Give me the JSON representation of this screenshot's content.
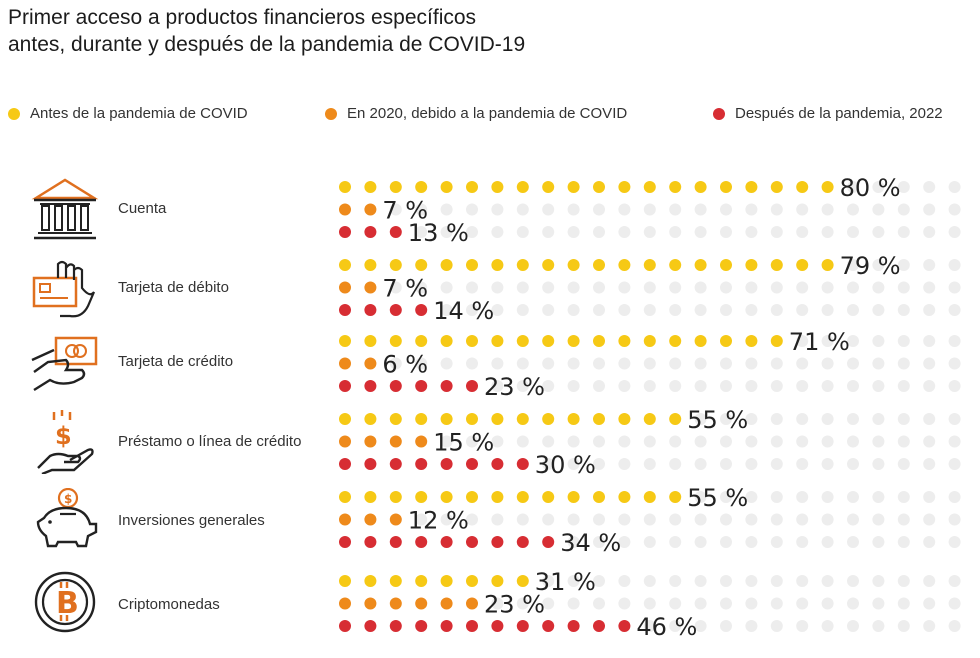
{
  "chart_data": {
    "type": "dot-matrix",
    "title": "Primer acceso a productos financieros específicos",
    "subtitle": "antes, durante y después de la pandemia de COVID-19",
    "legend": [
      {
        "label": "Antes de la pandemia de COVID",
        "color": "#F6C915"
      },
      {
        "label": "En 2020, debido a la pandemia de COVID",
        "color": "#EE8A1B"
      },
      {
        "label": "Después de la pandemia, 2022",
        "color": "#D72D33"
      }
    ],
    "empty_color": "#EDEDED",
    "categories": [
      {
        "name": "Cuenta",
        "icon": "bank-icon",
        "values": [
          80,
          7,
          13
        ],
        "labels": [
          "80 %",
          "7 %",
          "13 %"
        ]
      },
      {
        "name": "Tarjeta de débito",
        "icon": "debit-card-icon",
        "values": [
          79,
          7,
          14
        ],
        "labels": [
          "79 %",
          "7 %",
          "14 %"
        ]
      },
      {
        "name": "Tarjeta de crédito",
        "icon": "credit-card-icon",
        "values": [
          71,
          6,
          23
        ],
        "labels": [
          "71 %",
          "6 %",
          "23 %"
        ]
      },
      {
        "name": "Préstamo o línea de crédito",
        "icon": "loan-icon",
        "values": [
          55,
          15,
          30
        ],
        "labels": [
          "55 %",
          "15 %",
          "30 %"
        ]
      },
      {
        "name": "Inversiones generales",
        "icon": "piggy-bank-icon",
        "values": [
          55,
          12,
          34
        ],
        "labels": [
          "55 %",
          "12 %",
          "34 %"
        ]
      },
      {
        "name": "Criptomonedas",
        "icon": "bitcoin-icon",
        "values": [
          31,
          23,
          46
        ],
        "labels": [
          "31 %",
          "23 %",
          "46 %"
        ]
      }
    ]
  }
}
